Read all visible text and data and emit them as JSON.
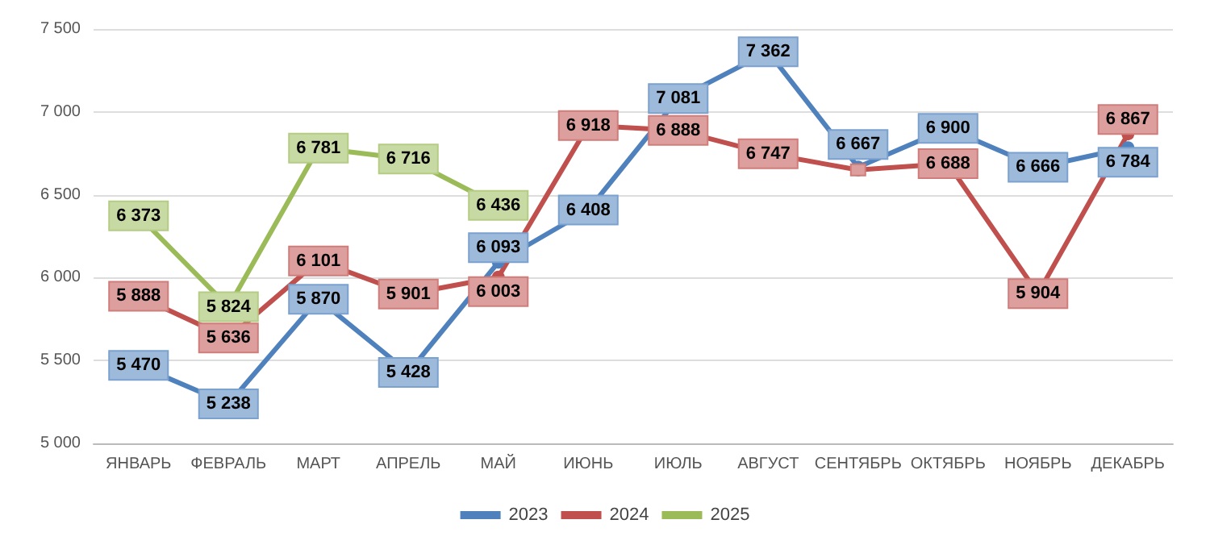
{
  "chart_data": {
    "type": "line",
    "categories": [
      "ЯНВАРЬ",
      "ФЕВРАЛЬ",
      "МАРТ",
      "АПРЕЛЬ",
      "МАЙ",
      "ИЮНЬ",
      "ИЮЛЬ",
      "АВГУСТ",
      "СЕНТЯБРЬ",
      "ОКТЯБРЬ",
      "НОЯБРЬ",
      "ДЕКАБРЬ"
    ],
    "series": [
      {
        "name": "2023",
        "color": "#4f81bd",
        "values": [
          5470,
          5238,
          5870,
          5428,
          6093,
          6408,
          7081,
          7362,
          6667,
          6900,
          6666,
          6784
        ],
        "value_labels": [
          "5 470",
          "5 238",
          "5 870",
          "5 428",
          "6 093",
          "6 408",
          "7 081",
          "7 362",
          "6 667",
          "6 900",
          "6 666",
          "6 784"
        ]
      },
      {
        "name": "2024",
        "color": "#c0504d",
        "values": [
          5888,
          5636,
          6101,
          5901,
          6003,
          6918,
          6888,
          6747,
          6650,
          6688,
          5904,
          6867
        ],
        "value_labels": [
          "5 888",
          "5 636",
          "6 101",
          "5 901",
          "6 003",
          "6 918",
          "6 888",
          "6 747",
          null,
          "6 688",
          "5 904",
          "6 867"
        ]
      },
      {
        "name": "2025",
        "color": "#9bbb59",
        "values": [
          6373,
          5824,
          6781,
          6716,
          6436,
          null,
          null,
          null,
          null,
          null,
          null,
          null
        ],
        "value_labels": [
          "6 373",
          "5 824",
          "6 781",
          "6 716",
          "6 436",
          null,
          null,
          null,
          null,
          null,
          null,
          null
        ]
      }
    ],
    "ylim": [
      5000,
      7500
    ],
    "yticks": [
      {
        "value": 5000,
        "label": "5 000"
      },
      {
        "value": 5500,
        "label": "5 500"
      },
      {
        "value": 6000,
        "label": "6 000"
      },
      {
        "value": 6500,
        "label": "6 500"
      },
      {
        "value": 7000,
        "label": "7 000"
      },
      {
        "value": 7500,
        "label": "7 500"
      }
    ],
    "grid": "y",
    "legend": "bottom",
    "marker": "circle",
    "line_style": "solid"
  }
}
